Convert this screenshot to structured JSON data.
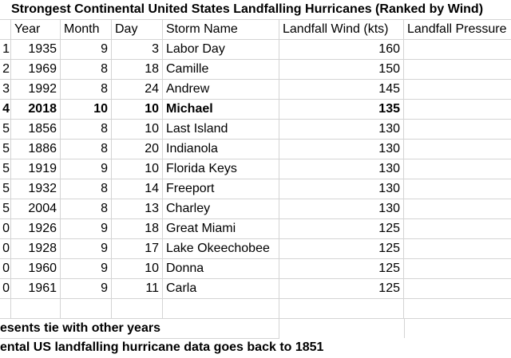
{
  "title": "Strongest Continental United States Landfalling Hurricanes (Ranked by Wind)",
  "headers": {
    "year": "Year",
    "month": "Month",
    "day": "Day",
    "storm": "Storm Name",
    "wind": "Landfall Wind (kts)",
    "pressure": "Landfall Pressure"
  },
  "rows": [
    {
      "rank": "1",
      "year": "1935",
      "month": "9",
      "day": "3",
      "storm": "Labor Day",
      "wind": "160",
      "bold": false
    },
    {
      "rank": "2",
      "year": "1969",
      "month": "8",
      "day": "18",
      "storm": "Camille",
      "wind": "150",
      "bold": false
    },
    {
      "rank": "3",
      "year": "1992",
      "month": "8",
      "day": "24",
      "storm": "Andrew",
      "wind": "145",
      "bold": false
    },
    {
      "rank": "4",
      "year": "2018",
      "month": "10",
      "day": "10",
      "storm": "Michael",
      "wind": "135",
      "bold": true
    },
    {
      "rank": "5",
      "year": "1856",
      "month": "8",
      "day": "10",
      "storm": "Last Island",
      "wind": "130",
      "bold": false
    },
    {
      "rank": "5",
      "year": "1886",
      "month": "8",
      "day": "20",
      "storm": "Indianola",
      "wind": "130",
      "bold": false
    },
    {
      "rank": "5",
      "year": "1919",
      "month": "9",
      "day": "10",
      "storm": "Florida Keys",
      "wind": "130",
      "bold": false
    },
    {
      "rank": "5",
      "year": "1932",
      "month": "8",
      "day": "14",
      "storm": "Freeport",
      "wind": "130",
      "bold": false
    },
    {
      "rank": "5",
      "year": "2004",
      "month": "8",
      "day": "13",
      "storm": "Charley",
      "wind": "130",
      "bold": false
    },
    {
      "rank": "0",
      "year": "1926",
      "month": "9",
      "day": "18",
      "storm": "Great Miami",
      "wind": "125",
      "bold": false
    },
    {
      "rank": "0",
      "year": "1928",
      "month": "9",
      "day": "17",
      "storm": "Lake Okeechobee",
      "wind": "125",
      "bold": false
    },
    {
      "rank": "0",
      "year": "1960",
      "month": "9",
      "day": "10",
      "storm": "Donna",
      "wind": "125",
      "bold": false
    },
    {
      "rank": "0",
      "year": "1961",
      "month": "9",
      "day": "11",
      "storm": "Carla",
      "wind": "125",
      "bold": false
    }
  ],
  "notes": [
    "esents tie with other years",
    "ental US landfalling hurricane data goes back to 1851"
  ]
}
